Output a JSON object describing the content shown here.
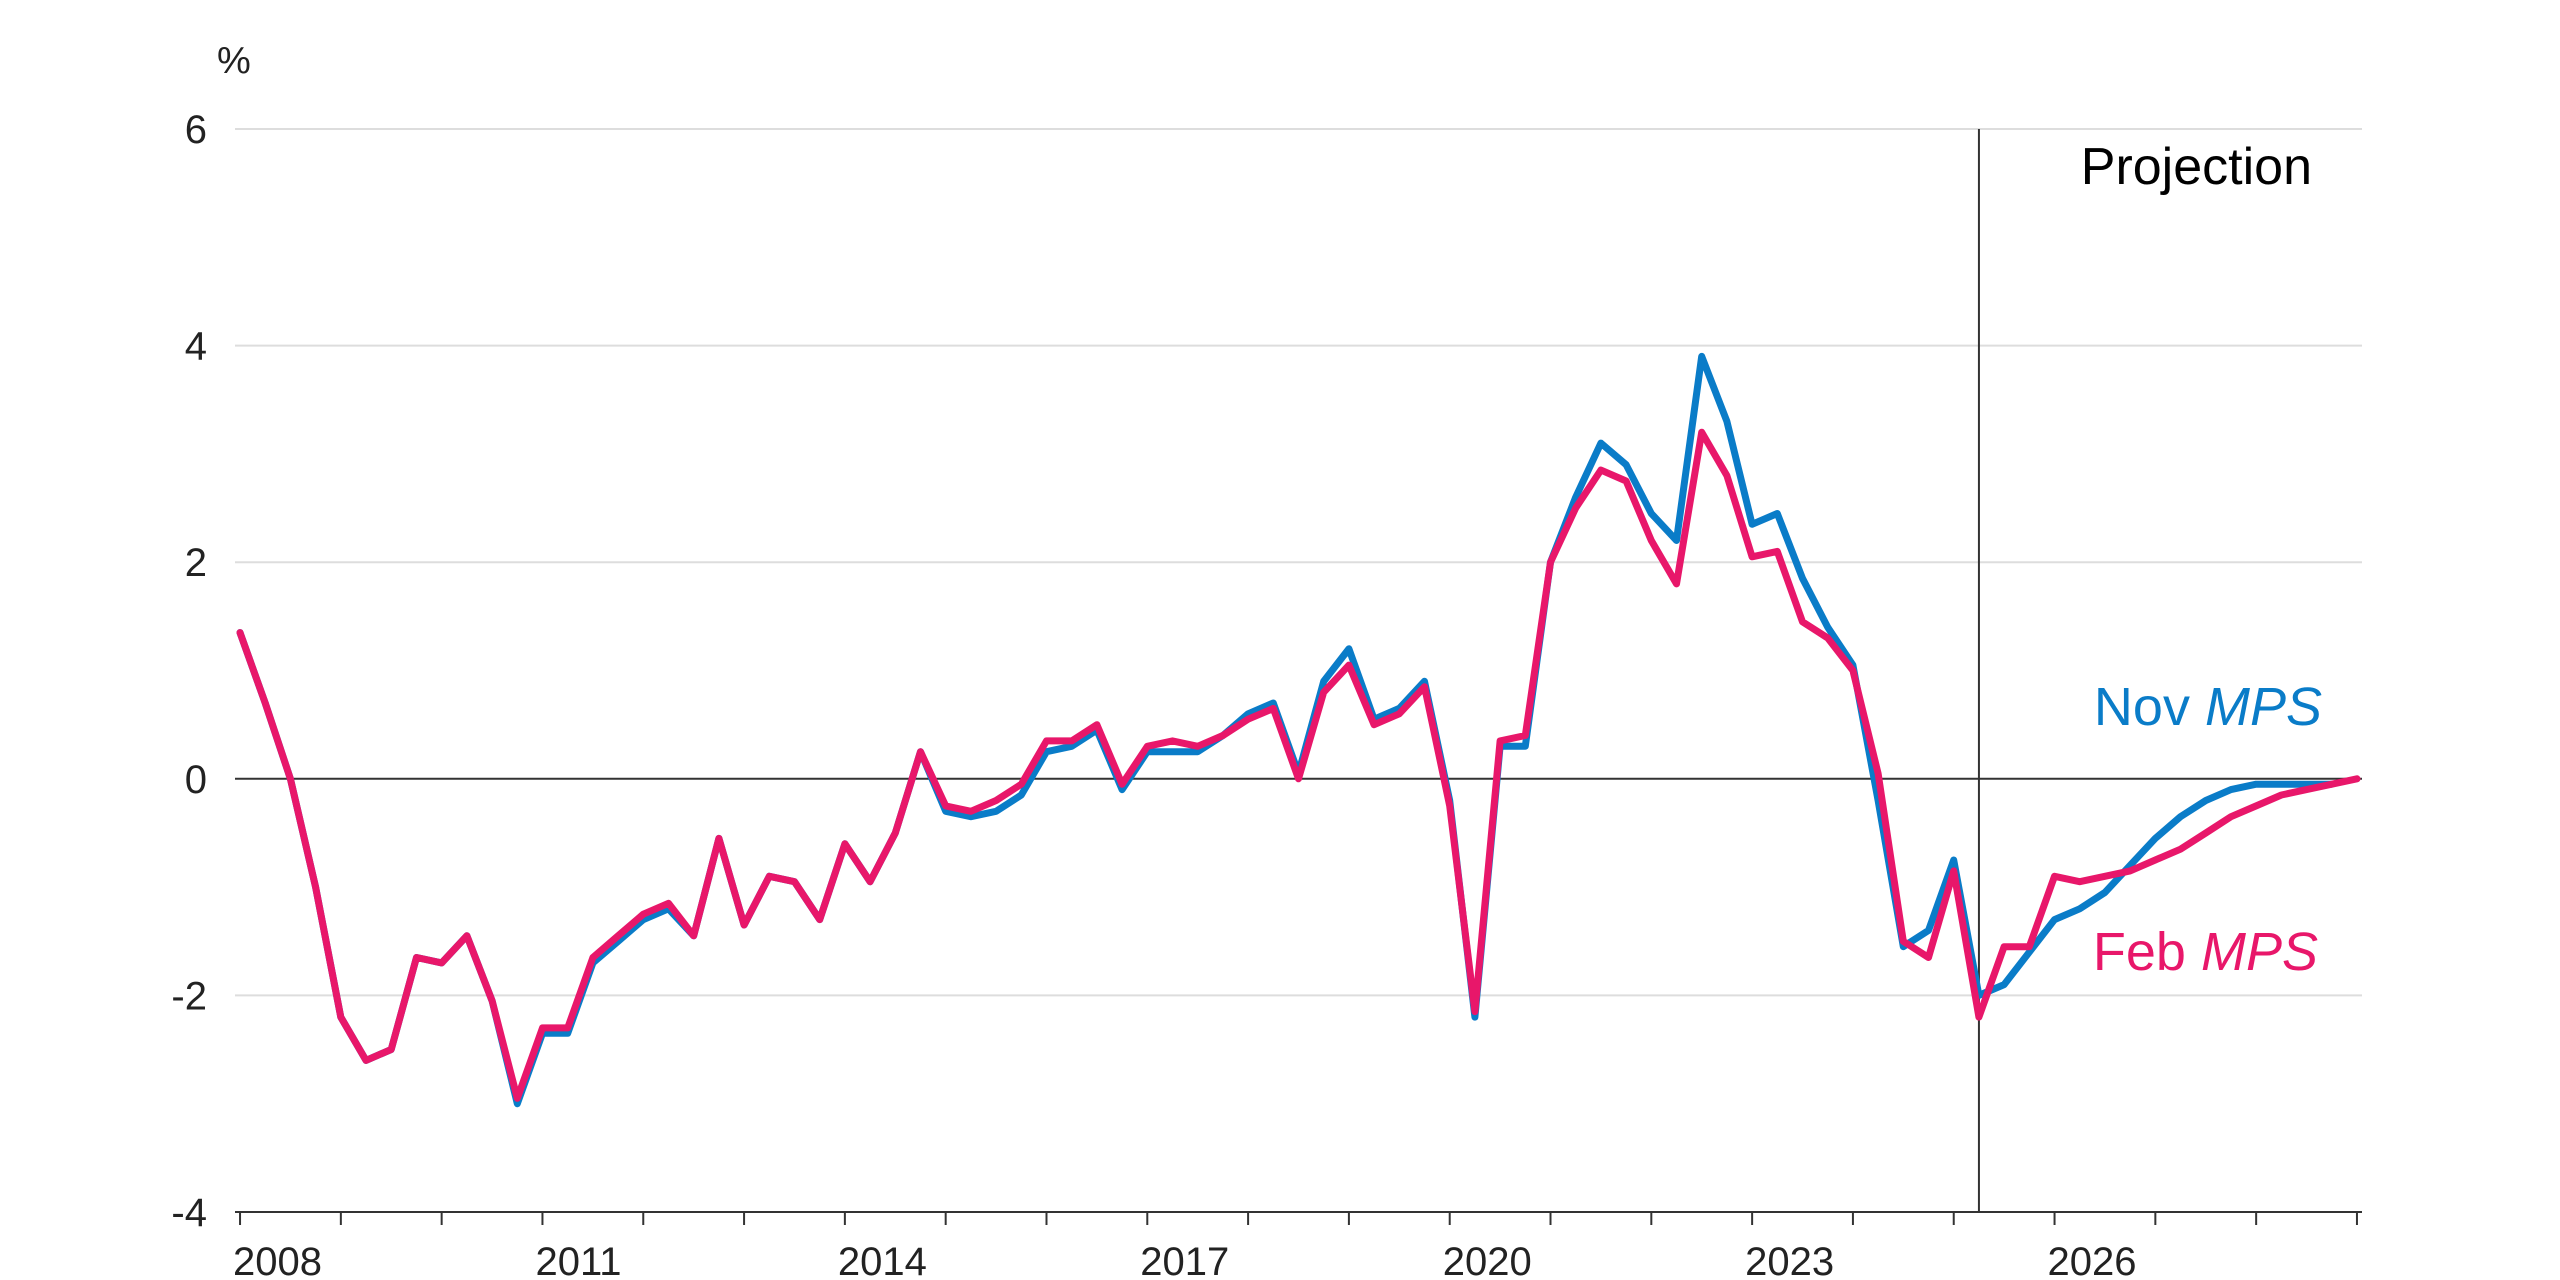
{
  "chart_data": {
    "type": "line",
    "unit": "%",
    "ylim": [
      -4,
      6
    ],
    "yticks": [
      6,
      4,
      2,
      0,
      -2,
      -4
    ],
    "xlim": [
      2007.95,
      2029.05
    ],
    "xtick_labels": [
      "2008",
      "2011",
      "2014",
      "2017",
      "2020",
      "2023",
      "2026"
    ],
    "xticks": [
      2008,
      2011,
      2014,
      2017,
      2020,
      2023,
      2026
    ],
    "grid": true,
    "projection_start": 2025.25,
    "projection_label": "Projection",
    "series": [
      {
        "name_main": "Nov",
        "name_em": "MPS",
        "color": "#0A7CC8",
        "x": [
          2008.0,
          2008.25,
          2008.5,
          2008.75,
          2009.0,
          2009.25,
          2009.5,
          2009.75,
          2010.0,
          2010.25,
          2010.5,
          2010.75,
          2011.0,
          2011.25,
          2011.5,
          2011.75,
          2012.0,
          2012.25,
          2012.5,
          2012.75,
          2013.0,
          2013.25,
          2013.5,
          2013.75,
          2014.0,
          2014.25,
          2014.5,
          2014.75,
          2015.0,
          2015.25,
          2015.5,
          2015.75,
          2016.0,
          2016.25,
          2016.5,
          2016.75,
          2017.0,
          2017.25,
          2017.5,
          2017.75,
          2018.0,
          2018.25,
          2018.5,
          2018.75,
          2019.0,
          2019.25,
          2019.5,
          2019.75,
          2020.0,
          2020.25,
          2020.5,
          2020.75,
          2021.0,
          2021.25,
          2021.5,
          2021.75,
          2022.0,
          2022.25,
          2022.5,
          2022.75,
          2023.0,
          2023.25,
          2023.5,
          2023.75,
          2024.0,
          2024.25,
          2024.5,
          2024.75,
          2025.0,
          2025.25,
          2025.5,
          2025.75,
          2026.0,
          2026.25,
          2026.5,
          2026.75,
          2027.0,
          2027.25,
          2027.5,
          2027.75,
          2028.0,
          2028.25,
          2028.5,
          2028.75
        ],
        "y": [
          1.35,
          0.7,
          0.0,
          -1.0,
          -2.2,
          -2.6,
          -2.5,
          -1.65,
          -1.7,
          -1.45,
          -2.05,
          -3.0,
          -2.35,
          -2.35,
          -1.7,
          -1.5,
          -1.3,
          -1.2,
          -1.45,
          -0.55,
          -1.35,
          -0.9,
          -0.95,
          -1.3,
          -0.6,
          -0.95,
          -0.5,
          0.25,
          -0.3,
          -0.35,
          -0.3,
          -0.15,
          0.25,
          0.3,
          0.45,
          -0.1,
          0.25,
          0.25,
          0.25,
          0.4,
          0.6,
          0.7,
          0.05,
          0.9,
          1.2,
          0.55,
          0.65,
          0.9,
          -0.2,
          -2.2,
          0.3,
          0.3,
          2.0,
          2.6,
          3.1,
          2.9,
          2.45,
          2.2,
          3.9,
          3.3,
          2.35,
          2.45,
          1.85,
          1.4,
          1.05,
          -0.2,
          -1.55,
          -1.4,
          -0.75,
          -2.0,
          -1.9,
          -1.6,
          -1.3,
          -1.2,
          -1.05,
          -0.8,
          -0.55,
          -0.35,
          -0.2,
          -0.1,
          -0.05,
          -0.05,
          -0.05,
          -0.05
        ]
      },
      {
        "name_main": "Feb",
        "name_em": "MPS",
        "color": "#E8176A",
        "x": [
          2008.0,
          2008.25,
          2008.5,
          2008.75,
          2009.0,
          2009.25,
          2009.5,
          2009.75,
          2010.0,
          2010.25,
          2010.5,
          2010.75,
          2011.0,
          2011.25,
          2011.5,
          2011.75,
          2012.0,
          2012.25,
          2012.5,
          2012.75,
          2013.0,
          2013.25,
          2013.5,
          2013.75,
          2014.0,
          2014.25,
          2014.5,
          2014.75,
          2015.0,
          2015.25,
          2015.5,
          2015.75,
          2016.0,
          2016.25,
          2016.5,
          2016.75,
          2017.0,
          2017.25,
          2017.5,
          2017.75,
          2018.0,
          2018.25,
          2018.5,
          2018.75,
          2019.0,
          2019.25,
          2019.5,
          2019.75,
          2020.0,
          2020.25,
          2020.5,
          2020.75,
          2021.0,
          2021.25,
          2021.5,
          2021.75,
          2022.0,
          2022.25,
          2022.5,
          2022.75,
          2023.0,
          2023.25,
          2023.5,
          2023.75,
          2024.0,
          2024.25,
          2024.5,
          2024.75,
          2025.0,
          2025.25,
          2025.5,
          2025.75,
          2026.0,
          2026.25,
          2026.5,
          2026.75,
          2027.0,
          2027.25,
          2027.5,
          2027.75,
          2028.0,
          2028.25,
          2028.5,
          2028.75,
          2029.0
        ],
        "y": [
          1.35,
          0.7,
          0.0,
          -1.0,
          -2.2,
          -2.6,
          -2.5,
          -1.65,
          -1.7,
          -1.45,
          -2.05,
          -2.95,
          -2.3,
          -2.3,
          -1.65,
          -1.45,
          -1.25,
          -1.15,
          -1.45,
          -0.55,
          -1.35,
          -0.9,
          -0.95,
          -1.3,
          -0.6,
          -0.95,
          -0.5,
          0.25,
          -0.25,
          -0.3,
          -0.2,
          -0.05,
          0.35,
          0.35,
          0.5,
          -0.05,
          0.3,
          0.35,
          0.3,
          0.4,
          0.55,
          0.65,
          0.0,
          0.8,
          1.05,
          0.5,
          0.6,
          0.85,
          -0.25,
          -2.15,
          0.35,
          0.4,
          2.0,
          2.5,
          2.85,
          2.75,
          2.2,
          1.8,
          3.2,
          2.8,
          2.05,
          2.1,
          1.45,
          1.3,
          1.0,
          0.05,
          -1.5,
          -1.65,
          -0.85,
          -2.2,
          -1.55,
          -1.55,
          -0.9,
          -0.95,
          -0.9,
          -0.85,
          -0.75,
          -0.65,
          -0.5,
          -0.35,
          -0.25,
          -0.15,
          -0.1,
          -0.05,
          0.0
        ]
      }
    ]
  }
}
